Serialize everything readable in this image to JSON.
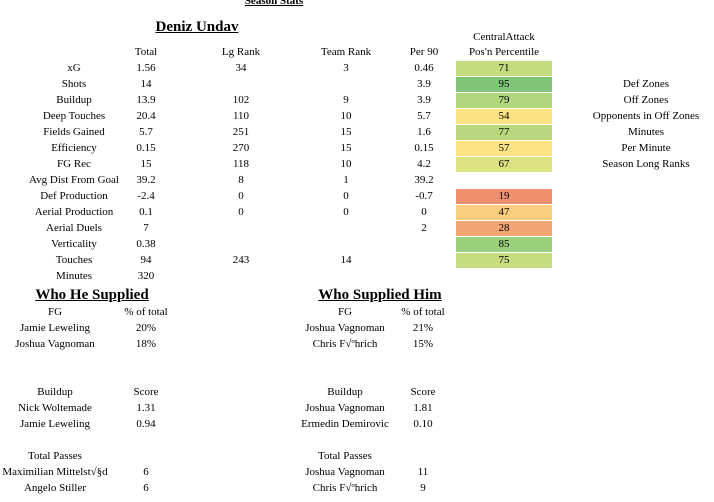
{
  "header": {
    "top_title": "Season Stats",
    "player_name": "Deniz Undav"
  },
  "stats_table": {
    "columns": {
      "total": "Total",
      "lg_rank": "Lg Rank",
      "team_rank": "Team Rank",
      "per90": "Per 90",
      "pct_line1": "CentralAttack",
      "pct_line2": "Pos'n Percentile"
    },
    "rows": [
      {
        "label": "xG",
        "total": "1.56",
        "lg_rank": "34",
        "team_rank": "3",
        "per90": "0.46",
        "pct": "71",
        "color": "#c5dc7e"
      },
      {
        "label": "Shots",
        "total": "14",
        "lg_rank": "",
        "team_rank": "",
        "per90": "3.9",
        "pct": "95",
        "color": "#7ec576"
      },
      {
        "label": "Buildup",
        "total": "13.9",
        "lg_rank": "102",
        "team_rank": "9",
        "per90": "3.9",
        "pct": "79",
        "color": "#b0d77e"
      },
      {
        "label": "Deep Touches",
        "total": "20.4",
        "lg_rank": "110",
        "team_rank": "10",
        "per90": "5.7",
        "pct": "54",
        "color": "#fce283"
      },
      {
        "label": "Fields Gained",
        "total": "5.7",
        "lg_rank": "251",
        "team_rank": "15",
        "per90": "1.6",
        "pct": "77",
        "color": "#bad97e"
      },
      {
        "label": "Efficiency",
        "total": "0.15",
        "lg_rank": "270",
        "team_rank": "15",
        "per90": "0.15",
        "pct": "57",
        "color": "#fde384"
      },
      {
        "label": "FG Rec",
        "total": "15",
        "lg_rank": "118",
        "team_rank": "10",
        "per90": "4.2",
        "pct": "67",
        "color": "#dce281"
      },
      {
        "label": "Avg Dist From Goal",
        "total": "39.2",
        "lg_rank": "8",
        "team_rank": "1",
        "per90": "39.2",
        "pct": "",
        "color": ""
      },
      {
        "label": "Def Production",
        "total": "-2.4",
        "lg_rank": "0",
        "team_rank": "0",
        "per90": "-0.7",
        "pct": "19",
        "color": "#f0906e"
      },
      {
        "label": "Aerial Production",
        "total": "0.1",
        "lg_rank": "0",
        "team_rank": "0",
        "per90": "0",
        "pct": "47",
        "color": "#fbcd7f"
      },
      {
        "label": "Aerial Duels",
        "total": "7",
        "lg_rank": "",
        "team_rank": "",
        "per90": "2",
        "pct": "28",
        "color": "#f4a574"
      },
      {
        "label": "Verticality",
        "total": "0.38",
        "lg_rank": "",
        "team_rank": "",
        "per90": "",
        "pct": "85",
        "color": "#9bd07c"
      },
      {
        "label": "Touches",
        "total": "94",
        "lg_rank": "243",
        "team_rank": "14",
        "per90": "",
        "pct": "75",
        "color": "#c7dc7f"
      },
      {
        "label": "Minutes",
        "total": "320",
        "lg_rank": "",
        "team_rank": "",
        "per90": "",
        "pct": "",
        "color": ""
      }
    ]
  },
  "right_list": [
    "Def Zones",
    "Off Zones",
    "Opponents in Off Zones",
    "Minutes",
    "Per Minute",
    "Season Long Ranks"
  ],
  "who_he_supplied": {
    "title": "Who He Supplied",
    "sections": [
      {
        "h1": "FG",
        "h2": "% of total",
        "rows": [
          [
            "Jamie Leweling",
            "20%"
          ],
          [
            "Joshua Vagnoman",
            "18%"
          ]
        ]
      },
      {
        "h1": "Buildup",
        "h2": "Score",
        "rows": [
          [
            "Nick Woltemade",
            "1.31"
          ],
          [
            "Jamie Leweling",
            "0.94"
          ]
        ]
      },
      {
        "h1": "Total Passes",
        "h2": "",
        "rows": [
          [
            "Maximilian Mittelst√§d",
            "6"
          ],
          [
            "Angelo Stiller",
            "6"
          ]
        ]
      }
    ]
  },
  "who_supplied_him": {
    "title": "Who Supplied Him",
    "sections": [
      {
        "h1": "FG",
        "h2": "% of total",
        "rows": [
          [
            "Joshua Vagnoman",
            "21%"
          ],
          [
            "Chris F√ºhrich",
            "15%"
          ]
        ]
      },
      {
        "h1": "Buildup",
        "h2": "Score",
        "rows": [
          [
            "Joshua Vagnoman",
            "1.81"
          ],
          [
            "Ermedin Demirovic",
            "0.10"
          ]
        ]
      },
      {
        "h1": "Total Passes",
        "h2": "",
        "rows": [
          [
            "Joshua Vagnoman",
            "11"
          ],
          [
            "Chris F√ºhrich",
            "9"
          ]
        ]
      }
    ]
  }
}
